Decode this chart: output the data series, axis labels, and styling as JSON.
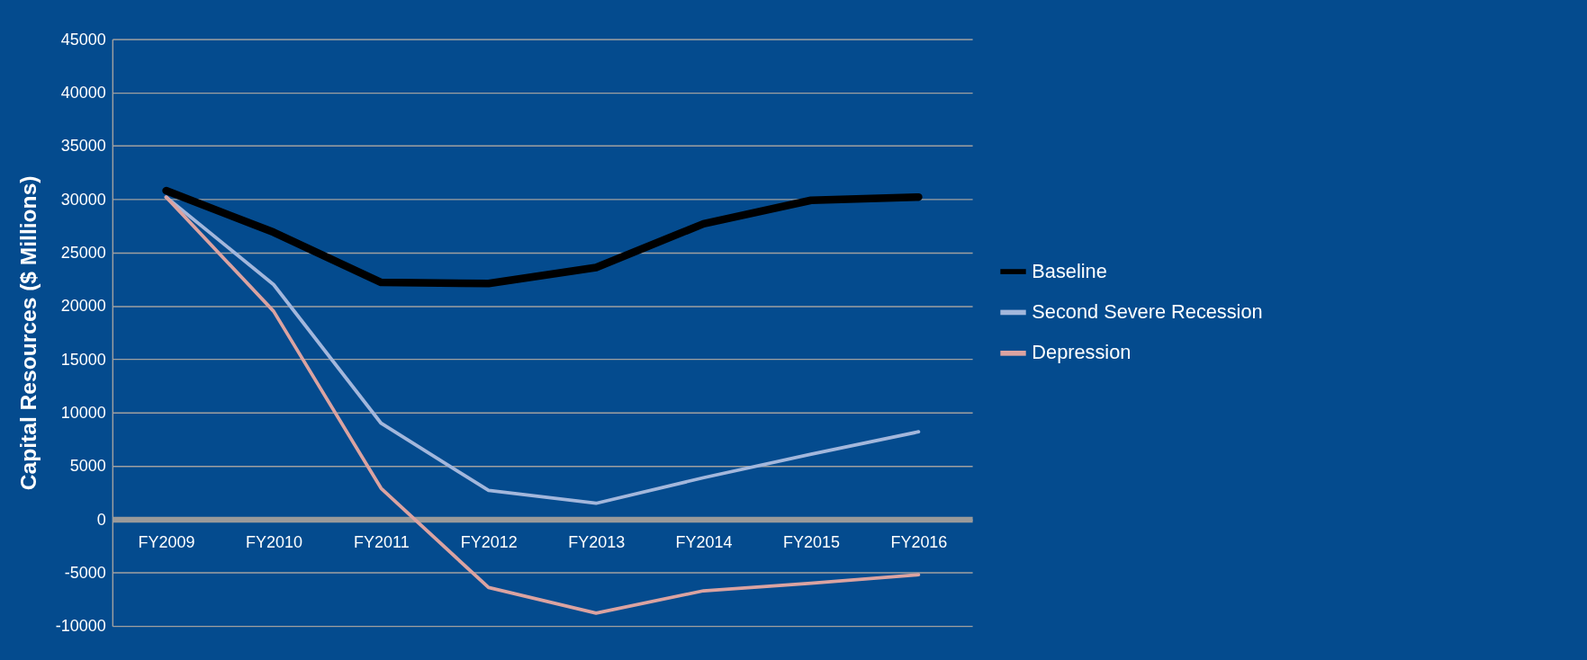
{
  "chart_data": {
    "type": "line",
    "ylabel": "Capital Resources ($ Millions)",
    "categories": [
      "FY2009",
      "FY2010",
      "FY2011",
      "FY2012",
      "FY2013",
      "FY2014",
      "FY2015",
      "FY2016"
    ],
    "series": [
      {
        "name": "Baseline",
        "color": "#000000",
        "values": [
          30800,
          26900,
          22200,
          22100,
          23600,
          27700,
          29900,
          30200
        ]
      },
      {
        "name": "Second Severe Recession",
        "color": "#a3b7dc",
        "values": [
          30200,
          22000,
          9000,
          2700,
          1500,
          3900,
          6100,
          8200
        ]
      },
      {
        "name": "Depression",
        "color": "#dba3a1",
        "values": [
          30200,
          19500,
          2900,
          -6400,
          -8800,
          -6700,
          -6000,
          -5200
        ]
      }
    ],
    "ylim": [
      -10000,
      45000
    ],
    "yticks": [
      -10000,
      -5000,
      0,
      5000,
      10000,
      15000,
      20000,
      25000,
      30000,
      35000,
      40000,
      45000
    ],
    "grid": "y",
    "legend": "right",
    "marker": "none",
    "line_style": "solid"
  }
}
